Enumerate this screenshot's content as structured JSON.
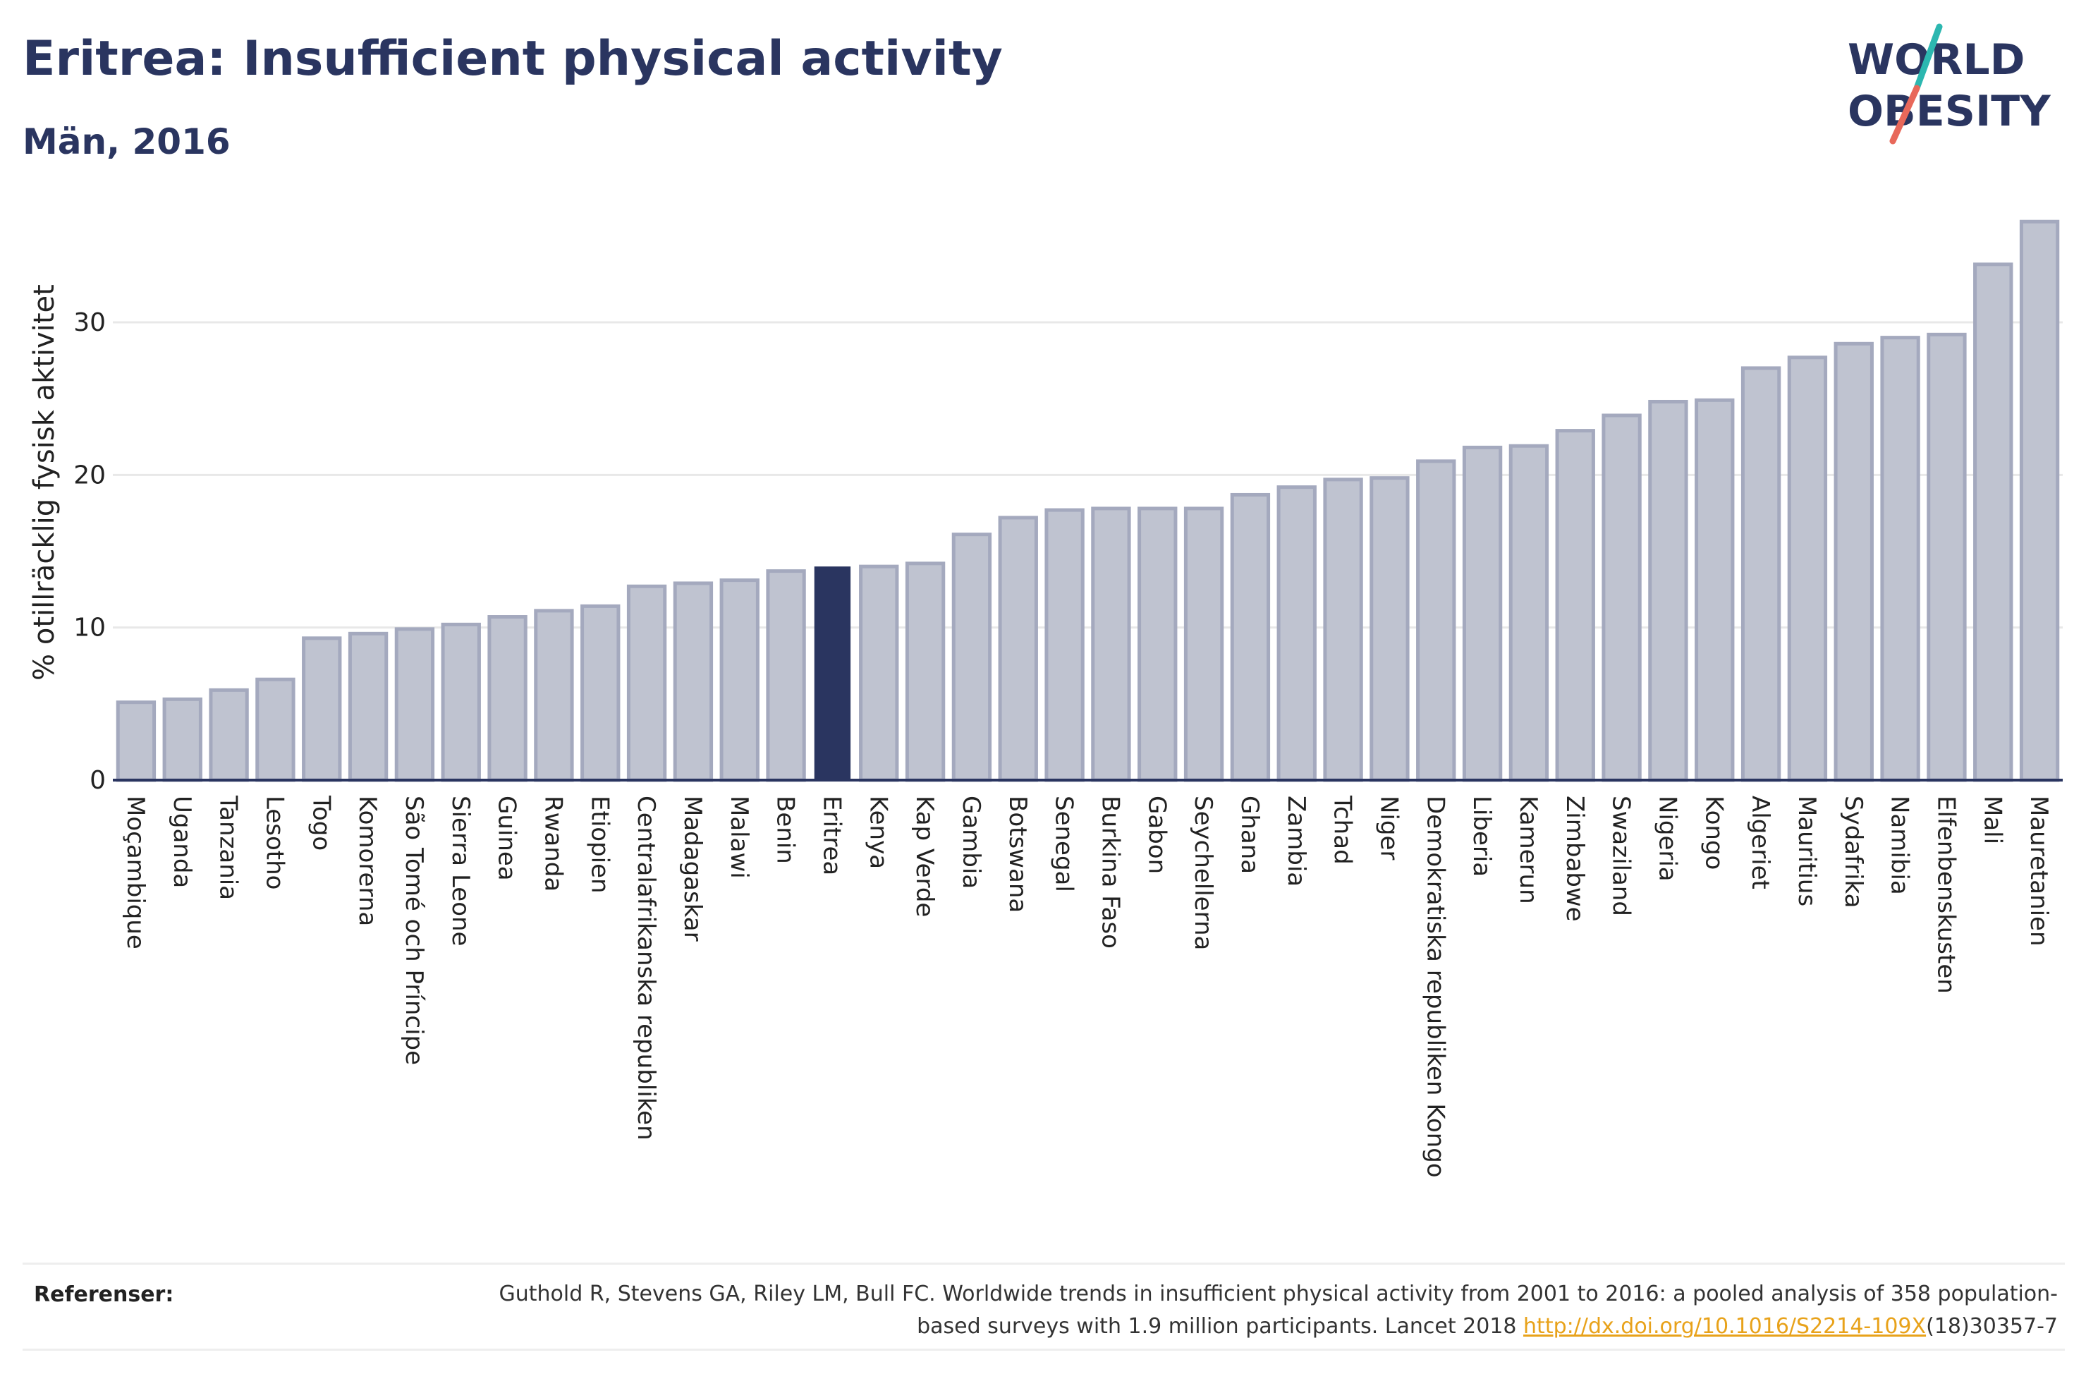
{
  "header": {
    "title": "Eritrea: Insufficient physical activity",
    "subtitle": "Män, 2016"
  },
  "logo": {
    "line1": "WORLD",
    "line2": "OBESITY",
    "accent_teal": "#2cb7b0",
    "accent_coral": "#e8685a"
  },
  "colors": {
    "bar": "#bfc3d0",
    "bar_stroke": "#a4a9be",
    "highlight": "#2a3560",
    "axis": "#2a3560",
    "grid": "#e8e8e8"
  },
  "chart_data": {
    "type": "bar",
    "title": "Eritrea: Insufficient physical activity",
    "subtitle": "Män, 2016",
    "xlabel": "",
    "ylabel": "% otillräcklig fysisk aktivitet",
    "ylim": [
      0,
      37
    ],
    "yticks": [
      0,
      10,
      20,
      30
    ],
    "grid": true,
    "highlight": "Eritrea",
    "categories": [
      "Moçambique",
      "Uganda",
      "Tanzania",
      "Lesotho",
      "Togo",
      "Komorerna",
      "São Tomé och Príncipe",
      "Sierra Leone",
      "Guinea",
      "Rwanda",
      "Etiopien",
      "Centralafrikanska republiken",
      "Madagaskar",
      "Malawi",
      "Benin",
      "Eritrea",
      "Kenya",
      "Kap Verde",
      "Gambia",
      "Botswana",
      "Senegal",
      "Burkina Faso",
      "Gabon",
      "Seychellerna",
      "Ghana",
      "Zambia",
      "Tchad",
      "Niger",
      "Demokratiska republiken Kongo",
      "Liberia",
      "Kamerun",
      "Zimbabwe",
      "Swaziland",
      "Nigeria",
      "Kongo",
      "Algeriet",
      "Mauritius",
      "Sydafrika",
      "Namibia",
      "Elfenbenskusten",
      "Mali",
      "Mauretanien"
    ],
    "values": [
      5.1,
      5.3,
      5.9,
      6.6,
      9.3,
      9.6,
      9.9,
      10.2,
      10.7,
      11.1,
      11.4,
      12.7,
      12.9,
      13.1,
      13.7,
      14.0,
      14.0,
      14.2,
      16.1,
      17.2,
      17.7,
      17.8,
      17.8,
      17.8,
      18.7,
      19.2,
      19.7,
      19.8,
      20.9,
      21.8,
      21.9,
      22.9,
      23.9,
      24.8,
      24.9,
      27.0,
      27.7,
      28.6,
      29.0,
      29.2,
      33.8,
      36.6
    ]
  },
  "references": {
    "label": "Referenser:",
    "text": "Guthold R, Stevens GA, Riley LM, Bull FC. Worldwide trends in insufficient physical activity from 2001 to 2016: a pooled analysis of 358 population-based surveys with 1.9 million participants. Lancet 2018 ",
    "link": "http://dx.doi.org/10.1016/S2214-109X",
    "tail": "(18)30357-7"
  }
}
